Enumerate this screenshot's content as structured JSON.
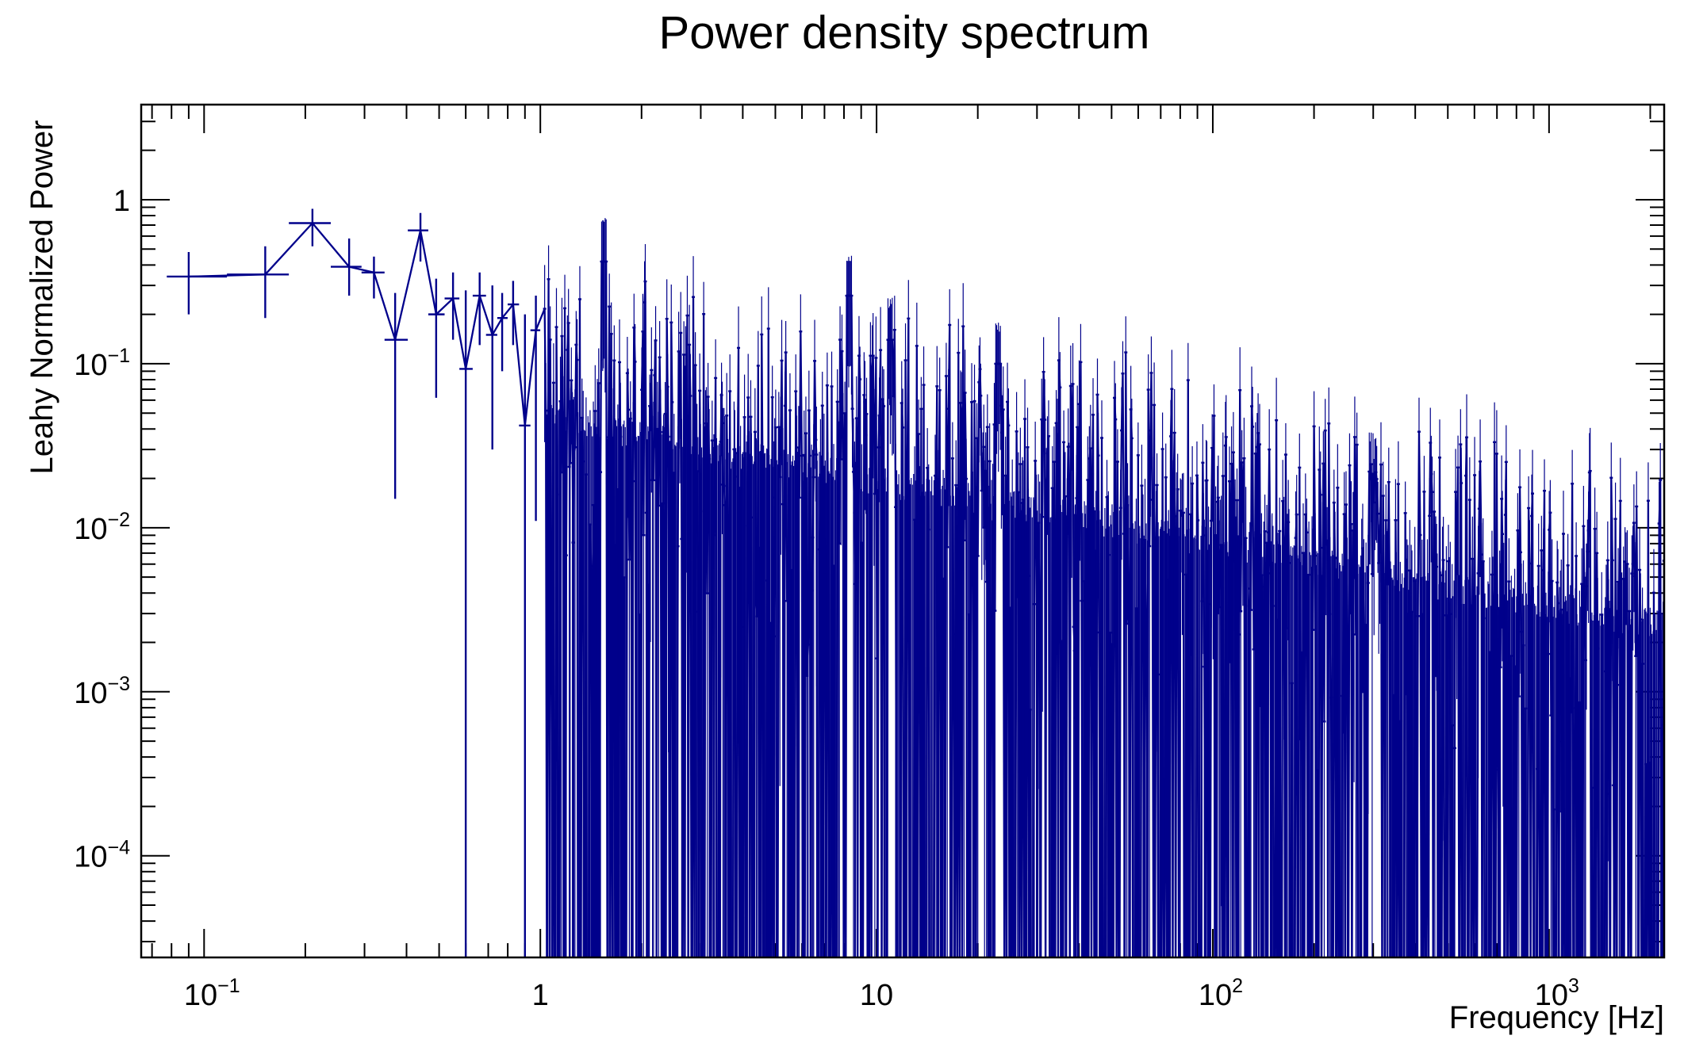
{
  "chart_data": {
    "type": "line",
    "title": "Power density spectrum",
    "xlabel": "Frequency [Hz]",
    "ylabel": "Leahy Normalized Power",
    "x_scale": "log",
    "y_scale": "log",
    "xlim": [
      0.065,
      2200
    ],
    "ylim": [
      2.4e-05,
      3.8
    ],
    "x_ticks": [
      {
        "value": 0.1,
        "base": "10",
        "exp": "−1"
      },
      {
        "value": 1,
        "base": "1",
        "exp": ""
      },
      {
        "value": 10,
        "base": "10",
        "exp": ""
      },
      {
        "value": 100,
        "base": "10",
        "exp": "2"
      },
      {
        "value": 1000,
        "base": "10",
        "exp": "3"
      }
    ],
    "y_ticks": [
      {
        "value": 1,
        "base": "1",
        "exp": ""
      },
      {
        "value": 0.1,
        "base": "10",
        "exp": "−1"
      },
      {
        "value": 0.01,
        "base": "10",
        "exp": "−2"
      },
      {
        "value": 0.001,
        "base": "10",
        "exp": "−3"
      },
      {
        "value": 0.0001,
        "base": "10",
        "exp": "−4"
      }
    ],
    "grid": false,
    "legend": "none",
    "series_color": "#00008b",
    "low_frequency_points": [
      {
        "x": 0.09,
        "y": 0.34,
        "err_low": 0.2,
        "err_high": 0.48
      },
      {
        "x": 0.152,
        "y": 0.35,
        "err_low": 0.19,
        "err_high": 0.52
      },
      {
        "x": 0.21,
        "y": 0.72,
        "err_low": 0.52,
        "err_high": 0.88
      },
      {
        "x": 0.27,
        "y": 0.39,
        "err_low": 0.26,
        "err_high": 0.58
      },
      {
        "x": 0.32,
        "y": 0.36,
        "err_low": 0.25,
        "err_high": 0.45
      },
      {
        "x": 0.37,
        "y": 0.14,
        "err_low": 0.015,
        "err_high": 0.27
      },
      {
        "x": 0.44,
        "y": 0.65,
        "err_low": 0.42,
        "err_high": 0.83
      },
      {
        "x": 0.49,
        "y": 0.2,
        "err_low": 0.062,
        "err_high": 0.33
      },
      {
        "x": 0.55,
        "y": 0.25,
        "err_low": 0.14,
        "err_high": 0.36
      },
      {
        "x": 0.6,
        "y": 0.093,
        "err_low": 2.31e-05,
        "err_high": 0.28
      },
      {
        "x": 0.66,
        "y": 0.26,
        "err_low": 0.13,
        "err_high": 0.36
      },
      {
        "x": 0.72,
        "y": 0.15,
        "err_low": 0.03,
        "err_high": 0.3
      },
      {
        "x": 0.77,
        "y": 0.19,
        "err_low": 0.09,
        "err_high": 0.27
      },
      {
        "x": 0.83,
        "y": 0.23,
        "err_low": 0.13,
        "err_high": 0.32
      },
      {
        "x": 0.9,
        "y": 0.042,
        "err_low": 2.31e-05,
        "err_high": 0.2
      },
      {
        "x": 0.97,
        "y": 0.16,
        "err_low": 0.011,
        "err_high": 0.26
      }
    ],
    "peaks": [
      {
        "x": 1.55,
        "y": 0.42
      },
      {
        "x": 8.3,
        "y": 0.26
      },
      {
        "x": 11,
        "y": 0.14
      },
      {
        "x": 23,
        "y": 0.1
      }
    ],
    "trend": {
      "amplitude_at_1Hz": 0.17,
      "slope": -0.38
    },
    "floor_value": 2.31e-05
  }
}
